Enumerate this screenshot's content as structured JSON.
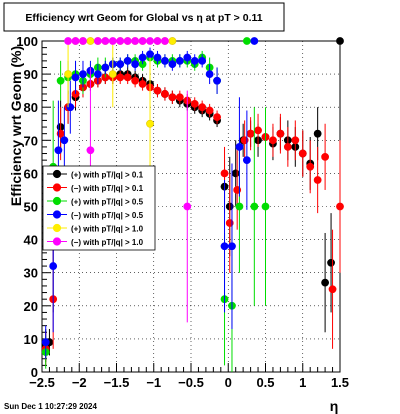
{
  "chart_data": {
    "type": "scatter",
    "title": "Efficiency wrt Geom for Global vs  η at pT > 0.11",
    "xlabel": "η",
    "ylabel": "Efficiency wrt Geom (%)",
    "xlim": [
      -2.5,
      1.5
    ],
    "ylim": [
      0,
      100
    ],
    "xticks": [
      -2.5,
      -2,
      -1.5,
      -1,
      -0.5,
      0,
      0.5,
      1,
      1.5
    ],
    "xtick_labels": [
      "−2.5",
      "−2",
      "−1.5",
      "−1",
      "−0.5",
      "0",
      "0.5",
      "1",
      "1.5"
    ],
    "yticks": [
      0,
      10,
      20,
      30,
      40,
      50,
      60,
      70,
      80,
      90,
      100
    ],
    "ytick_labels": [
      "0",
      "10",
      "20",
      "30",
      "40",
      "50",
      "60",
      "70",
      "80",
      "90",
      "100"
    ],
    "grid": true,
    "legend_position": "left-middle",
    "timestamp": "Sun Dec  1 10:27:29 2024",
    "series": [
      {
        "name": "(+) with pT/|q| > 0.1",
        "color": "#000000",
        "points": [
          [
            -2.45,
            8,
            5
          ],
          [
            -2.4,
            9,
            4
          ],
          [
            -2.35,
            38,
            20
          ],
          [
            -2.25,
            74,
            8
          ],
          [
            -2.15,
            80,
            5
          ],
          [
            -2.05,
            83,
            4
          ],
          [
            -1.95,
            86,
            3
          ],
          [
            -1.85,
            87,
            2
          ],
          [
            -1.75,
            88,
            2
          ],
          [
            -1.65,
            89,
            2
          ],
          [
            -1.55,
            89,
            2
          ],
          [
            -1.45,
            90,
            2
          ],
          [
            -1.35,
            90,
            2
          ],
          [
            -1.25,
            89,
            2
          ],
          [
            -1.15,
            88,
            2
          ],
          [
            -1.05,
            87,
            2
          ],
          [
            -0.95,
            85,
            2
          ],
          [
            -0.85,
            84,
            2
          ],
          [
            -0.75,
            83,
            2
          ],
          [
            -0.65,
            82,
            2
          ],
          [
            -0.55,
            81,
            2
          ],
          [
            -0.45,
            80,
            2
          ],
          [
            -0.35,
            79,
            2
          ],
          [
            -0.25,
            78,
            2
          ],
          [
            -0.15,
            76,
            2
          ],
          [
            -0.05,
            56,
            8
          ],
          [
            0.02,
            50,
            15
          ],
          [
            0.1,
            60,
            10
          ],
          [
            0.2,
            70,
            5
          ],
          [
            0.3,
            72,
            4
          ],
          [
            0.4,
            70,
            5
          ],
          [
            0.5,
            71,
            4
          ],
          [
            0.6,
            69,
            5
          ],
          [
            0.7,
            72,
            5
          ],
          [
            0.8,
            70,
            6
          ],
          [
            0.9,
            68,
            6
          ],
          [
            1.0,
            66,
            7
          ],
          [
            1.1,
            63,
            8
          ],
          [
            1.2,
            72,
            8
          ],
          [
            1.3,
            27,
            15
          ],
          [
            1.38,
            33,
            15
          ],
          [
            1.5,
            100,
            0
          ]
        ]
      },
      {
        "name": "(−) with pT/|q| > 0.1",
        "color": "#ff0000",
        "points": [
          [
            -2.45,
            7,
            5
          ],
          [
            -2.35,
            22,
            15
          ],
          [
            -2.25,
            72,
            8
          ],
          [
            -2.15,
            80,
            5
          ],
          [
            -2.05,
            84,
            4
          ],
          [
            -1.95,
            86,
            3
          ],
          [
            -1.85,
            87,
            2
          ],
          [
            -1.75,
            88,
            2
          ],
          [
            -1.65,
            89,
            2
          ],
          [
            -1.55,
            89,
            2
          ],
          [
            -1.45,
            89,
            2
          ],
          [
            -1.35,
            89,
            2
          ],
          [
            -1.25,
            88,
            2
          ],
          [
            -1.15,
            87,
            2
          ],
          [
            -1.05,
            86,
            2
          ],
          [
            -0.95,
            85,
            2
          ],
          [
            -0.85,
            84,
            2
          ],
          [
            -0.75,
            83,
            2
          ],
          [
            -0.65,
            83,
            2
          ],
          [
            -0.55,
            82,
            2
          ],
          [
            -0.45,
            81,
            2
          ],
          [
            -0.35,
            80,
            2
          ],
          [
            -0.25,
            79,
            2
          ],
          [
            -0.15,
            77,
            2
          ],
          [
            -0.05,
            60,
            8
          ],
          [
            0.02,
            45,
            15
          ],
          [
            0.12,
            55,
            12
          ],
          [
            0.22,
            70,
            6
          ],
          [
            0.3,
            72,
            5
          ],
          [
            0.4,
            73,
            5
          ],
          [
            0.5,
            71,
            5
          ],
          [
            0.6,
            70,
            5
          ],
          [
            0.7,
            72,
            6
          ],
          [
            0.8,
            68,
            6
          ],
          [
            0.9,
            70,
            6
          ],
          [
            1.0,
            66,
            7
          ],
          [
            1.1,
            62,
            8
          ],
          [
            1.2,
            58,
            10
          ],
          [
            1.3,
            65,
            10
          ],
          [
            1.4,
            25,
            18
          ],
          [
            1.5,
            50,
            20
          ]
        ]
      },
      {
        "name": "(+) with pT/|q| > 0.5",
        "color": "#00dd00",
        "points": [
          [
            -2.45,
            6,
            5
          ],
          [
            -2.35,
            62,
            20
          ],
          [
            -2.25,
            88,
            6
          ],
          [
            -2.15,
            89,
            5
          ],
          [
            -2.05,
            90,
            4
          ],
          [
            -1.95,
            88,
            4
          ],
          [
            -1.85,
            90,
            3
          ],
          [
            -1.75,
            92,
            3
          ],
          [
            -1.65,
            92,
            3
          ],
          [
            -1.55,
            93,
            2
          ],
          [
            -1.45,
            93,
            2
          ],
          [
            -1.35,
            94,
            2
          ],
          [
            -1.25,
            94,
            2
          ],
          [
            -1.15,
            93,
            2
          ],
          [
            -1.05,
            95,
            2
          ],
          [
            -0.95,
            94,
            2
          ],
          [
            -0.85,
            94,
            2
          ],
          [
            -0.75,
            94,
            2
          ],
          [
            -0.65,
            94,
            2
          ],
          [
            -0.55,
            94,
            2
          ],
          [
            -0.45,
            93,
            2
          ],
          [
            -0.35,
            95,
            2
          ],
          [
            -0.25,
            92,
            3
          ],
          [
            -0.15,
            88,
            4
          ],
          [
            -0.05,
            22,
            20
          ],
          [
            0.05,
            20,
            25
          ],
          [
            0.15,
            50,
            20
          ],
          [
            0.25,
            100,
            0
          ],
          [
            0.35,
            50,
            30
          ],
          [
            0.5,
            50,
            30
          ]
        ]
      },
      {
        "name": "(−) with pT/|q| > 0.5",
        "color": "#0000ff",
        "points": [
          [
            -2.45,
            9,
            5
          ],
          [
            -2.35,
            32,
            20
          ],
          [
            -2.28,
            67,
            15
          ],
          [
            -2.2,
            70,
            10
          ],
          [
            -2.12,
            80,
            8
          ],
          [
            -2.05,
            89,
            5
          ],
          [
            -1.95,
            90,
            4
          ],
          [
            -1.85,
            91,
            3
          ],
          [
            -1.75,
            90,
            3
          ],
          [
            -1.65,
            92,
            2
          ],
          [
            -1.55,
            93,
            2
          ],
          [
            -1.45,
            93,
            2
          ],
          [
            -1.35,
            94,
            2
          ],
          [
            -1.25,
            93,
            2
          ],
          [
            -1.15,
            95,
            2
          ],
          [
            -1.05,
            96,
            2
          ],
          [
            -0.95,
            95,
            2
          ],
          [
            -0.85,
            94,
            2
          ],
          [
            -0.75,
            93,
            2
          ],
          [
            -0.65,
            94,
            2
          ],
          [
            -0.55,
            95,
            2
          ],
          [
            -0.45,
            94,
            2
          ],
          [
            -0.35,
            94,
            2
          ],
          [
            -0.25,
            90,
            3
          ],
          [
            -0.15,
            88,
            4
          ],
          [
            -0.05,
            38,
            20
          ],
          [
            0.05,
            38,
            25
          ],
          [
            0.15,
            68,
            15
          ],
          [
            0.25,
            64,
            15
          ],
          [
            0.35,
            100,
            0
          ]
        ]
      },
      {
        "name": "(+) with pT/|q| > 1.0",
        "color": "#ffee00",
        "points": [
          [
            -2.15,
            90,
            10
          ],
          [
            -2.05,
            100,
            0
          ],
          [
            -1.95,
            100,
            0
          ],
          [
            -1.85,
            100,
            0
          ],
          [
            -1.75,
            100,
            0
          ],
          [
            -1.65,
            100,
            0
          ],
          [
            -1.55,
            90,
            10
          ],
          [
            -1.45,
            100,
            0
          ],
          [
            -1.35,
            100,
            0
          ],
          [
            -1.25,
            100,
            0
          ],
          [
            -1.15,
            100,
            0
          ],
          [
            -1.05,
            75,
            20
          ],
          [
            -0.95,
            100,
            0
          ],
          [
            -0.85,
            100,
            0
          ],
          [
            -0.75,
            100,
            0
          ]
        ]
      },
      {
        "name": "(−) with pT/|q| > 1.0",
        "color": "#ff00ff",
        "points": [
          [
            -2.15,
            100,
            0
          ],
          [
            -2.05,
            100,
            0
          ],
          [
            -1.95,
            100,
            0
          ],
          [
            -1.85,
            67,
            25
          ],
          [
            -1.75,
            100,
            0
          ],
          [
            -1.65,
            100,
            0
          ],
          [
            -1.55,
            100,
            0
          ],
          [
            -1.45,
            100,
            0
          ],
          [
            -1.35,
            100,
            0
          ],
          [
            -1.25,
            100,
            0
          ],
          [
            -1.15,
            100,
            0
          ],
          [
            -1.05,
            100,
            0
          ],
          [
            -0.95,
            100,
            0
          ],
          [
            -0.85,
            100,
            0
          ],
          [
            -0.55,
            50,
            35
          ]
        ]
      }
    ]
  }
}
